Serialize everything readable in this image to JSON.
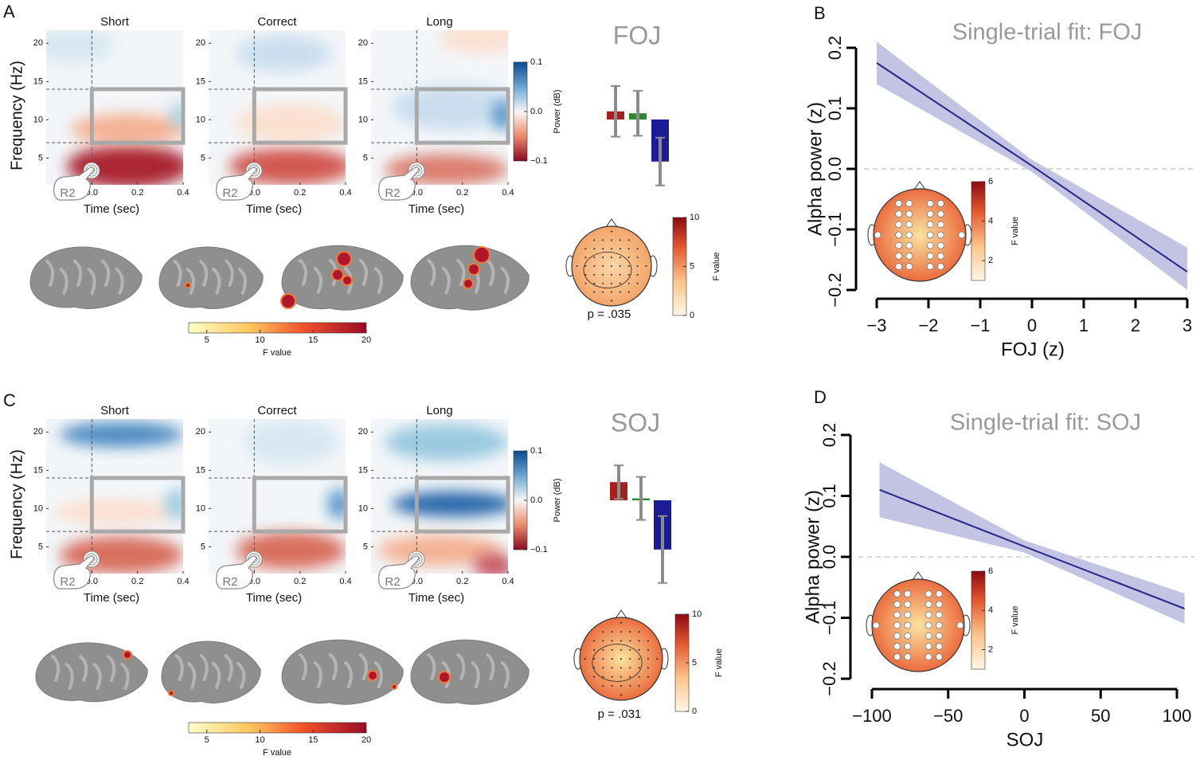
{
  "panels": [
    {
      "label": "A",
      "title": "FOJ",
      "heatmaps": {
        "conditions": [
          "Short",
          "Correct",
          "Long"
        ],
        "ylabel": "Frequency (Hz)",
        "xlabel": "Time (sec)",
        "cue": "R2",
        "xlim": [
          -0.2,
          0.4
        ],
        "xticks": [
          {
            "value": 0,
            "label": "0.0"
          },
          0.2,
          0.4
        ],
        "ylim": [
          1.5,
          21.7
        ],
        "yticks": [
          5,
          10,
          15,
          20
        ],
        "roi": {
          "time": [
            0,
            0.4
          ],
          "freq": [
            7,
            14
          ]
        },
        "colorbar": {
          "label": "Power (dB)",
          "lim": [
            -0.1,
            0.1
          ],
          "ticks": [
            0.1,
            {
              "value": 0,
              "label": "0.0"
            },
            {
              "value": -0.1,
              "label": "−0.1"
            }
          ]
        }
      },
      "bars": {
        "values": [
          0.017,
          0.013,
          -0.088
        ],
        "errors": [
          0.053,
          0.047,
          0.05
        ],
        "colors": [
          "#a3201f",
          "#2b8a2b",
          "#1c1c96"
        ]
      },
      "topo": {
        "p_label": "p = .035",
        "colorbar": {
          "label": "F value",
          "lim": [
            0,
            10
          ],
          "ticks": [
            10,
            5,
            0
          ]
        }
      },
      "brain_colorbar": {
        "label": "F value",
        "lim": [
          3.3,
          20
        ],
        "ticks": [
          5,
          10,
          15,
          20
        ]
      }
    },
    {
      "label": "C",
      "title": "SOJ",
      "heatmaps": {
        "conditions": [
          "Short",
          "Correct",
          "Long"
        ],
        "ylabel": "Frequency (Hz)",
        "xlabel": "Time (sec)",
        "cue": "R2",
        "xlim": [
          -0.2,
          0.4
        ],
        "xticks": [
          {
            "value": 0,
            "label": "0.0"
          },
          0.2,
          0.4
        ],
        "ylim": [
          1.5,
          21.7
        ],
        "yticks": [
          5,
          10,
          15,
          20
        ],
        "roi": {
          "time": [
            0,
            0.4
          ],
          "freq": [
            7,
            14
          ]
        },
        "colorbar": {
          "label": "Power (dB)",
          "lim": [
            -0.1,
            0.1
          ],
          "ticks": [
            0.1,
            {
              "value": 0,
              "label": "0.0"
            },
            {
              "value": -0.1,
              "label": "−0.1"
            }
          ]
        }
      },
      "bars": {
        "values": [
          0.038,
          0.004,
          -0.103
        ],
        "errors": [
          0.035,
          0.045,
          0.07
        ],
        "colors": [
          "#a3201f",
          "#2b8a2b",
          "#1c1c96"
        ]
      },
      "topo": {
        "p_label": "p = .031",
        "colorbar": {
          "label": "F value",
          "lim": [
            0,
            10
          ],
          "ticks": [
            10,
            5,
            0
          ]
        }
      },
      "brain_colorbar": {
        "label": "F value",
        "lim": [
          3.3,
          20
        ],
        "ticks": [
          5,
          10,
          15,
          20
        ]
      }
    }
  ],
  "chart_data": [
    {
      "type": "line",
      "panel_label": "B",
      "title": "Single-trial fit: FOJ",
      "xlabel": "FOJ (z)",
      "ylabel": "Alpha power (z)",
      "x": [
        -3,
        0,
        3
      ],
      "values": [
        0.175,
        0.005,
        -0.17
      ],
      "lower": [
        0.14,
        -0.005,
        -0.2
      ],
      "upper": [
        0.21,
        0.015,
        -0.13
      ],
      "color": "#25258a",
      "band_color": "#b9b9df",
      "xlim": [
        -3,
        3
      ],
      "xticks": [
        {
          "value": -3,
          "label": "−3"
        },
        {
          "value": -2,
          "label": "−2"
        },
        {
          "value": -1,
          "label": "−1"
        },
        0,
        1,
        2,
        3
      ],
      "ylim": [
        -0.2,
        0.2
      ],
      "yticks": [
        {
          "value": -0.2,
          "label": "−0.2"
        },
        {
          "value": -0.1,
          "label": "−0.1"
        },
        {
          "value": 0,
          "label": "0.0"
        },
        0.1,
        0.2
      ],
      "inset": {
        "colorbar_label": "F value",
        "colorbar_lim": [
          1,
          6
        ],
        "colorbar_ticks": [
          2,
          4,
          6
        ]
      }
    },
    {
      "type": "line",
      "panel_label": "D",
      "title": "Single-trial fit: SOJ",
      "xlabel": "SOJ",
      "ylabel": "Alpha power (z)",
      "x": [
        -95,
        0,
        105
      ],
      "values": [
        0.11,
        0.017,
        -0.085
      ],
      "lower": [
        0.065,
        0.007,
        -0.11
      ],
      "upper": [
        0.155,
        0.027,
        -0.06
      ],
      "color": "#25258a",
      "band_color": "#b9b9df",
      "xlim": [
        -100,
        100
      ],
      "xticks": [
        {
          "value": -100,
          "label": "−100"
        },
        {
          "value": -50,
          "label": "−50"
        },
        0,
        50,
        100
      ],
      "ylim": [
        -0.2,
        0.2
      ],
      "yticks": [
        {
          "value": -0.2,
          "label": "−0.2"
        },
        {
          "value": -0.1,
          "label": "−0.1"
        },
        {
          "value": 0,
          "label": "0.0"
        },
        0.1,
        0.2
      ],
      "inset": {
        "colorbar_label": "F value",
        "colorbar_lim": [
          1,
          6
        ],
        "colorbar_ticks": [
          2,
          4,
          6
        ]
      }
    }
  ]
}
